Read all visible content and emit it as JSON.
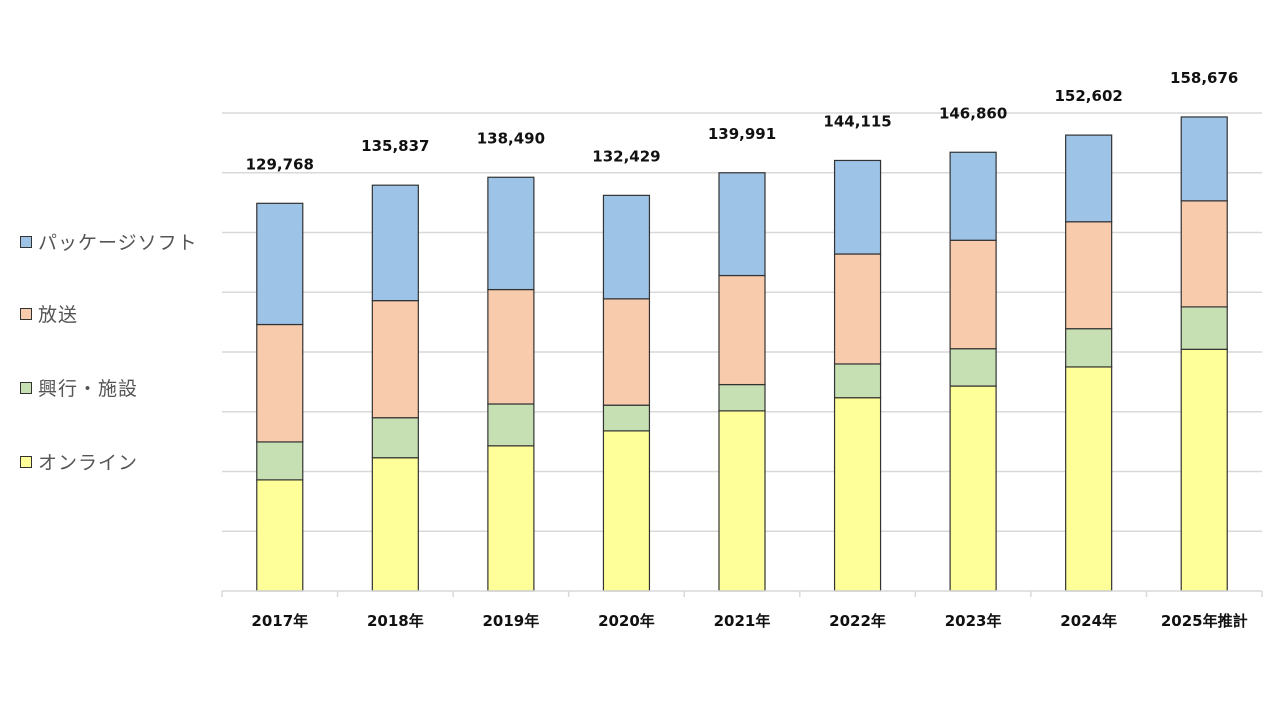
{
  "chart_data": {
    "type": "bar",
    "stacked": true,
    "title": "",
    "xlabel": "",
    "ylabel": "",
    "ylim": [
      0,
      160000
    ],
    "ytick_step": 20000,
    "ytick_labels_visible": false,
    "grid": true,
    "legend_position": "left",
    "categories": [
      "2017年",
      "2018年",
      "2019年",
      "2020年",
      "2021年",
      "2022年",
      "2023年",
      "2024年",
      "2025年推計"
    ],
    "series": [
      {
        "name": "オンライン",
        "color": "#FFFF99",
        "values": [
          37200,
          44600,
          48600,
          53600,
          60300,
          64700,
          68600,
          75000,
          80900
        ]
      },
      {
        "name": "興行・施設",
        "color": "#C6E0B4",
        "values": [
          12700,
          13400,
          14000,
          8600,
          8800,
          11300,
          12500,
          12800,
          14200
        ]
      },
      {
        "name": "放送",
        "color": "#F8CBAD",
        "values": [
          39300,
          39200,
          38300,
          35600,
          36500,
          36800,
          36300,
          35800,
          35500
        ]
      },
      {
        "name": "パッケージソフト",
        "color": "#9DC3E6",
        "values": [
          40568,
          38637,
          37590,
          34629,
          34391,
          31315,
          29460,
          29002,
          28076
        ]
      }
    ],
    "totals": [
      129768,
      135837,
      138490,
      132429,
      139991,
      144115,
      146860,
      152602,
      158676
    ],
    "total_labels": [
      "129,768",
      "135,837",
      "138,490",
      "132,429",
      "139,991",
      "144,115",
      "146,860",
      "152,602",
      "158,676"
    ]
  },
  "legend": [
    {
      "label": "パッケージソフト",
      "color": "#9DC3E6"
    },
    {
      "label": "放送",
      "color": "#F8CBAD"
    },
    {
      "label": "興行・施設",
      "color": "#C6E0B4"
    },
    {
      "label": "オンライン",
      "color": "#FFFF99"
    }
  ]
}
